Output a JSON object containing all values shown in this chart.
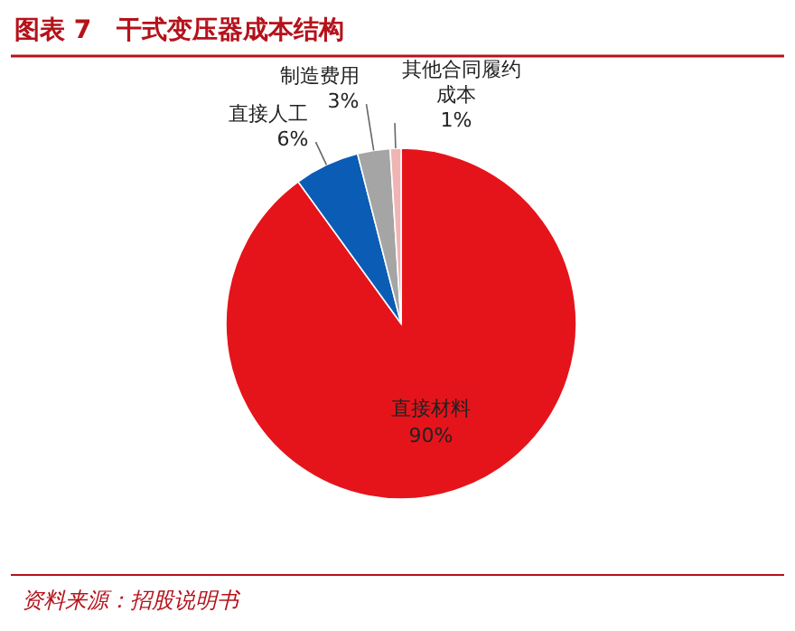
{
  "chart_data": {
    "type": "pie",
    "title": "图表 7　干式变压器成本结构",
    "categories": [
      "直接材料",
      "直接人工",
      "制造费用",
      "其他合同履约成本"
    ],
    "values": [
      90,
      6,
      3,
      1
    ],
    "colors": [
      "#e5141b",
      "#0b5cb5",
      "#a5a5a5",
      "#f0b4b4"
    ],
    "value_labels": [
      "90%",
      "6%",
      "3%",
      "1%"
    ],
    "annotations": [
      "资料来源：招股说明书"
    ]
  }
}
